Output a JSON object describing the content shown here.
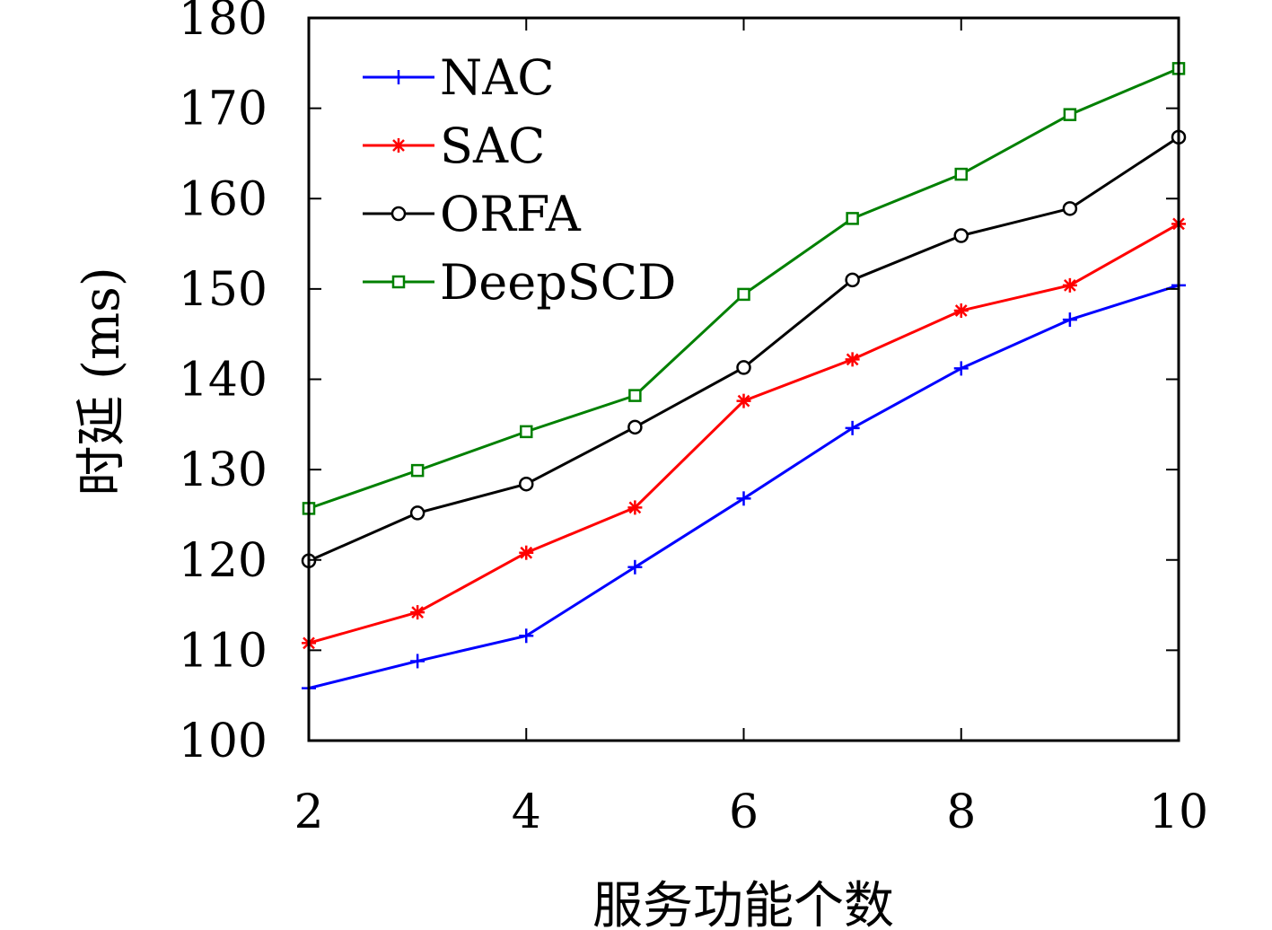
{
  "chart_data": {
    "type": "line",
    "xlabel": "服务功能个数",
    "ylabel": "时延 (ms)",
    "x": [
      2,
      3,
      4,
      5,
      6,
      7,
      8,
      9,
      10
    ],
    "xticks": [
      "2",
      "4",
      "6",
      "8",
      "10"
    ],
    "yticks": [
      "100",
      "110",
      "120",
      "130",
      "140",
      "150",
      "160",
      "170",
      "180"
    ],
    "xlim": [
      2,
      10
    ],
    "ylim": [
      100,
      180
    ],
    "grid": false,
    "legend_position": "top-left",
    "series": [
      {
        "name": "NAC",
        "color": "#0000ff",
        "marker": "plus",
        "values": [
          105.8,
          108.8,
          111.6,
          119.2,
          126.8,
          134.6,
          141.2,
          146.6,
          150.4
        ]
      },
      {
        "name": "SAC",
        "color": "#ff0000",
        "marker": "asterisk",
        "values": [
          110.8,
          114.2,
          120.8,
          125.8,
          137.6,
          142.2,
          147.6,
          150.4,
          157.2
        ]
      },
      {
        "name": "ORFA",
        "color": "#000000",
        "marker": "circle",
        "values": [
          119.9,
          125.2,
          128.4,
          134.7,
          141.3,
          151.0,
          155.9,
          158.9,
          166.8
        ]
      },
      {
        "name": "DeepSCD",
        "color": "#008000",
        "marker": "square",
        "values": [
          125.7,
          129.9,
          134.2,
          138.2,
          149.4,
          157.8,
          162.7,
          169.3,
          174.4
        ]
      }
    ]
  }
}
